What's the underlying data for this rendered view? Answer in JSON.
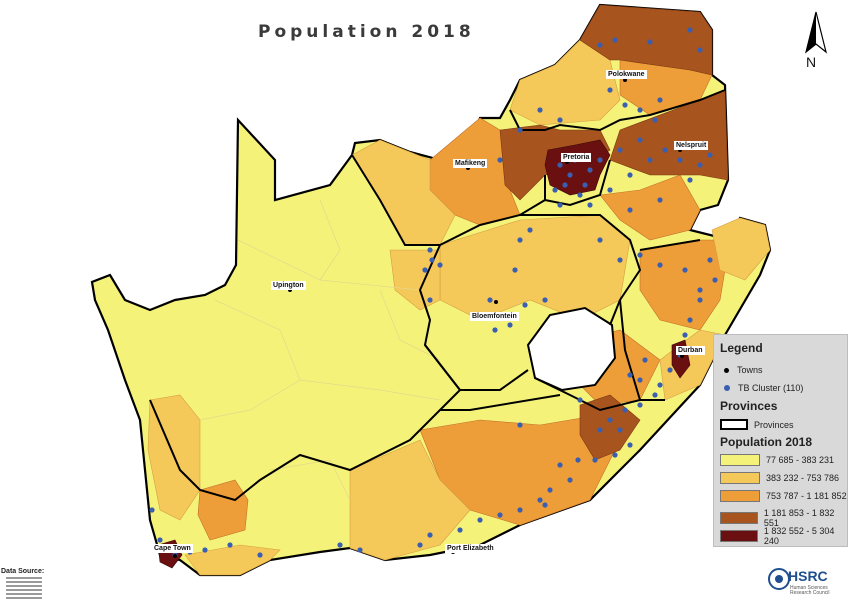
{
  "title": "Population 2018",
  "north_label": "N",
  "towns": [
    {
      "name": "Polokwane"
    },
    {
      "name": "Pretoria"
    },
    {
      "name": "Nelspruit"
    },
    {
      "name": "Mafikeng"
    },
    {
      "name": "Upington"
    },
    {
      "name": "Bloemfontein"
    },
    {
      "name": "Durban"
    },
    {
      "name": "Cape Town"
    },
    {
      "name": "Port Elizabeth"
    }
  ],
  "legend": {
    "title": "Legend",
    "towns_label": "Towns",
    "tb_label": "TB Cluster (110)",
    "provinces_heading": "Provinces",
    "provinces_label": "Provinces",
    "population_heading": "Population 2018",
    "classes": [
      {
        "label": "77 685 - 383 231",
        "color": "#f5f27a"
      },
      {
        "label": "383 232 - 753 786",
        "color": "#f5c85a"
      },
      {
        "label": "753 787 - 1 181 852",
        "color": "#ee9e38"
      },
      {
        "label": "1 181 853 - 1 832 551",
        "color": "#a8541e"
      },
      {
        "label": "1 832 552 - 5 304 240",
        "color": "#6a1010"
      }
    ]
  },
  "colors": {
    "tb_cluster": "#3a5fb0",
    "town": "#000000",
    "province_border": "#000000"
  },
  "data_source_label": "Data Source:",
  "logo": {
    "text": "HSRC",
    "subtitle": "Human Sciences Research Council"
  }
}
